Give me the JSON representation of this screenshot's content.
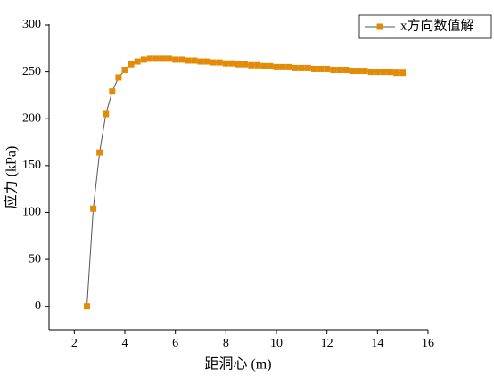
{
  "chart_data": {
    "type": "line",
    "x_label": "距洞心 (m)",
    "y_label": "应力 (kPa)",
    "x": [
      2.5,
      2.75,
      3.0,
      3.25,
      3.5,
      3.75,
      4.0,
      4.25,
      4.5,
      4.75,
      5.0,
      5.25,
      5.5,
      5.75,
      6.0,
      6.25,
      6.5,
      6.75,
      7.0,
      7.25,
      7.5,
      7.75,
      8.0,
      8.25,
      8.5,
      8.75,
      9.0,
      9.25,
      9.5,
      9.75,
      10.0,
      10.25,
      10.5,
      10.75,
      11.0,
      11.25,
      11.5,
      11.75,
      12.0,
      12.25,
      12.5,
      12.75,
      13.0,
      13.25,
      13.5,
      13.75,
      14.0,
      14.25,
      14.5,
      14.75,
      15.0
    ],
    "series": [
      {
        "name": "x方向数值解",
        "color": "#e38b06",
        "line_color": "#555555",
        "values": [
          0,
          104,
          164,
          205,
          229,
          244,
          252,
          258,
          261,
          263,
          264,
          264,
          264,
          264,
          263,
          263,
          262,
          262,
          261,
          261,
          260,
          260,
          259,
          259,
          258,
          258,
          257,
          257,
          256,
          256,
          255,
          255,
          255,
          254,
          254,
          254,
          253,
          253,
          253,
          252,
          252,
          252,
          251,
          251,
          251,
          250,
          250,
          250,
          250,
          249,
          249
        ]
      }
    ],
    "xlim": [
      1,
      16
    ],
    "xticks": [
      2,
      4,
      6,
      8,
      10,
      12,
      14,
      16
    ],
    "ylim": [
      -25,
      300
    ],
    "yticks": [
      0,
      50,
      100,
      150,
      200,
      250,
      300
    ],
    "legend": "upper right",
    "grid": false
  }
}
